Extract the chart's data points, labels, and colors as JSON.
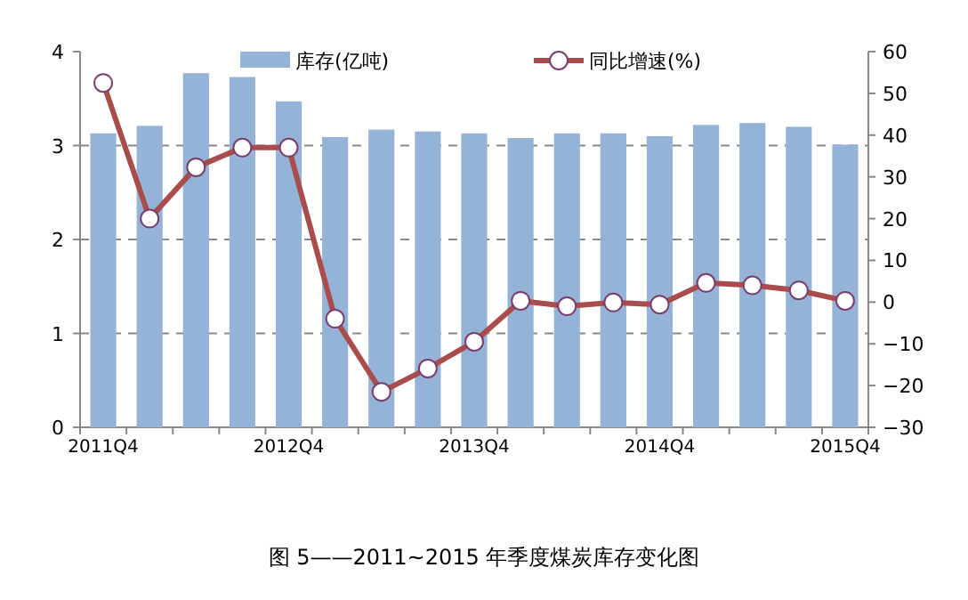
{
  "chart_data": {
    "type": "bar",
    "categories": [
      "2011Q4",
      null,
      null,
      null,
      "2012Q4",
      null,
      null,
      null,
      "2013Q4",
      null,
      null,
      null,
      "2014Q4",
      null,
      null,
      null,
      "2015Q4"
    ],
    "series": [
      {
        "name": "库存(亿吨)",
        "color": "#95b3d7",
        "values": [
          3.13,
          3.21,
          3.77,
          3.73,
          3.47,
          3.09,
          3.17,
          3.15,
          3.13,
          3.08,
          3.13,
          3.13,
          3.1,
          3.22,
          3.24,
          3.2,
          3.01
        ]
      },
      {
        "name": "同比增速(%)",
        "type": "line",
        "axis": "y2",
        "color": "#a94c4c",
        "marker": "circle",
        "values": [
          52.5,
          20,
          32.3,
          37,
          37,
          -4,
          -21.5,
          -15.9,
          -9.5,
          0.3,
          -1,
          -0.1,
          -0.6,
          4.6,
          4,
          2.8,
          0.3
        ]
      }
    ],
    "ylim": [
      0,
      4
    ],
    "yticks": [
      0,
      1,
      2,
      3,
      4
    ],
    "y2lim": [
      -30,
      60
    ],
    "y2ticks": [
      -30,
      -20,
      -10,
      0,
      10,
      20,
      30,
      40,
      50,
      60
    ],
    "grid": "y",
    "legend": "top",
    "annotations": [
      "图 5——2011~2015 年季度煤炭库存变化图"
    ]
  }
}
